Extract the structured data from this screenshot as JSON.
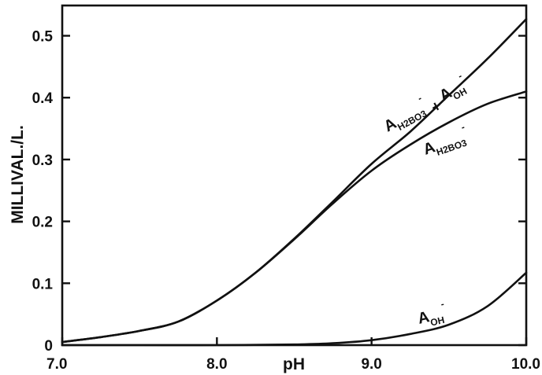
{
  "chart_data": {
    "type": "line",
    "title": "",
    "xlabel": "pH",
    "ylabel": "MILLIVAL./L.",
    "xlim": [
      7.0,
      10.0
    ],
    "ylim": [
      0,
      0.55
    ],
    "grid": false,
    "legend": "none",
    "x_ticks": [
      7.0,
      8.0,
      9.0,
      10.0
    ],
    "x_tick_labels": [
      "7.0",
      "8.0",
      "9.0",
      "10.0"
    ],
    "y_ticks": [
      0,
      0.1,
      0.2,
      0.3,
      0.4,
      0.5
    ],
    "y_tick_labels": [
      "0",
      "0.1",
      "0.2",
      "0.3",
      "0.4",
      "0.5"
    ],
    "series": [
      {
        "name": "AH2BO3- + AOH-",
        "label": {
          "base": "A",
          "sub": "H2BO3",
          "sup": "-",
          "plus": "+",
          "base2": "A",
          "sub2": "OH",
          "sup2": "-"
        },
        "x": [
          7.0,
          7.25,
          7.5,
          7.75,
          8.0,
          8.25,
          8.5,
          8.75,
          9.0,
          9.25,
          9.5,
          9.75,
          10.0
        ],
        "y": [
          0.005,
          0.013,
          0.023,
          0.038,
          0.072,
          0.117,
          0.172,
          0.232,
          0.293,
          0.345,
          0.404,
          0.463,
          0.527
        ]
      },
      {
        "name": "AH2BO3-",
        "label": {
          "base": "A",
          "sub": "H2BO3",
          "sup": "-"
        },
        "x": [
          7.0,
          7.25,
          7.5,
          7.75,
          8.0,
          8.25,
          8.5,
          8.75,
          9.0,
          9.25,
          9.5,
          9.75,
          10.0
        ],
        "y": [
          0.005,
          0.013,
          0.023,
          0.038,
          0.072,
          0.117,
          0.171,
          0.229,
          0.282,
          0.324,
          0.36,
          0.39,
          0.41
        ]
      },
      {
        "name": "AOH-",
        "label": {
          "base": "A",
          "sub": "OH",
          "sup": "-"
        },
        "x": [
          7.0,
          7.5,
          8.0,
          8.5,
          8.75,
          9.0,
          9.25,
          9.5,
          9.75,
          10.0
        ],
        "y": [
          0.0,
          0.0,
          0.0,
          0.001,
          0.003,
          0.008,
          0.018,
          0.033,
          0.063,
          0.117
        ]
      }
    ]
  }
}
